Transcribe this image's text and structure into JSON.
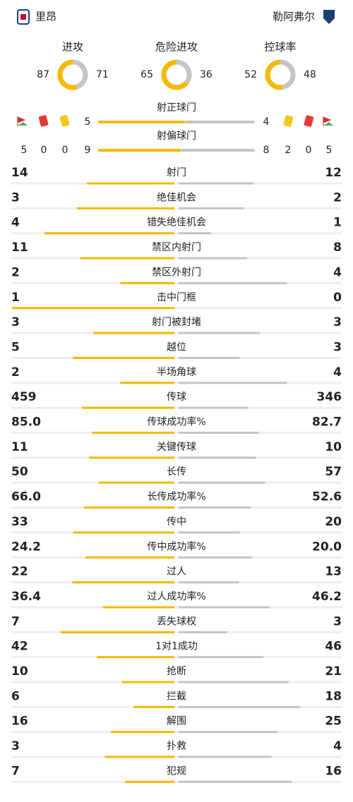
{
  "header": {
    "home_team": "里昂",
    "away_team": "勒阿弗尔"
  },
  "donuts": [
    {
      "label": "进攻",
      "home": 87,
      "away": 71
    },
    {
      "label": "危险进攻",
      "home": 65,
      "away": 36
    },
    {
      "label": "控球率",
      "home": 52,
      "away": 48
    }
  ],
  "cards": {
    "home": {
      "corners": 5,
      "red": 0,
      "yellow": 0
    },
    "away": {
      "corners": 5,
      "red": 0,
      "yellow": 2
    }
  },
  "shots": [
    {
      "label": "射正球门",
      "home": 5,
      "away": 4
    },
    {
      "label": "射偏球门",
      "home": 9,
      "away": 8
    }
  ],
  "stats": [
    {
      "label": "射门",
      "home": 14,
      "away": 12
    },
    {
      "label": "绝佳机会",
      "home": 3,
      "away": 2
    },
    {
      "label": "错失绝佳机会",
      "home": 4,
      "away": 1
    },
    {
      "label": "禁区内射门",
      "home": 11,
      "away": 8
    },
    {
      "label": "禁区外射门",
      "home": 2,
      "away": 4
    },
    {
      "label": "击中门框",
      "home": 1,
      "away": 0
    },
    {
      "label": "射门被封堵",
      "home": 3,
      "away": 3
    },
    {
      "label": "越位",
      "home": 5,
      "away": 3
    },
    {
      "label": "半场角球",
      "home": 2,
      "away": 4
    },
    {
      "label": "传球",
      "home": 459,
      "away": 346
    },
    {
      "label": "传球成功率%",
      "home": 85,
      "home_label": "85.0",
      "away": 82.7
    },
    {
      "label": "关键传球",
      "home": 11,
      "away": 10
    },
    {
      "label": "长传",
      "home": 50,
      "away": 57
    },
    {
      "label": "长传成功率%",
      "home": 66,
      "home_label": "66.0",
      "away": 52.6
    },
    {
      "label": "传中",
      "home": 33,
      "away": 20
    },
    {
      "label": "传中成功率%",
      "home": 24.2,
      "away": 20,
      "away_label": "20.0"
    },
    {
      "label": "过人",
      "home": 22,
      "away": 13
    },
    {
      "label": "过人成功率%",
      "home": 36.4,
      "away": 46.2
    },
    {
      "label": "丢失球权",
      "home": 7,
      "away": 3
    },
    {
      "label": "1对1成功",
      "home": 42,
      "away": 46
    },
    {
      "label": "抢断",
      "home": 10,
      "away": 21
    },
    {
      "label": "拦截",
      "home": 6,
      "away": 18
    },
    {
      "label": "解围",
      "home": 16,
      "away": 25
    },
    {
      "label": "扑救",
      "home": 3,
      "away": 4
    },
    {
      "label": "犯规",
      "home": 7,
      "away": 16
    }
  ]
}
